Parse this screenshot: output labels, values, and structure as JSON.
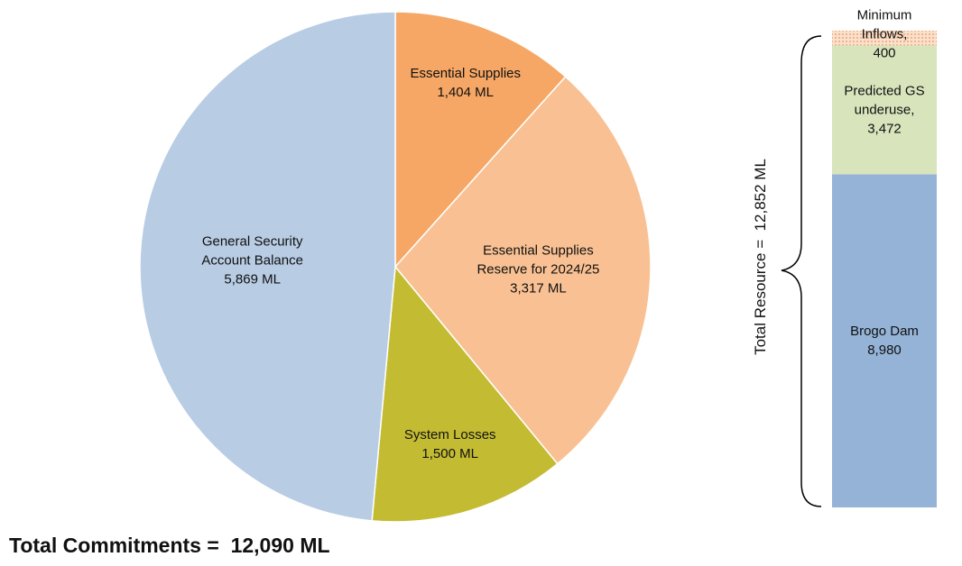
{
  "chart_data": [
    {
      "type": "pie",
      "categories": [
        "Essential Supplies",
        "Essential Supplies Reserve for 2024/25",
        "System Losses",
        "General Security Account Balance"
      ],
      "values": [
        1404,
        3317,
        1500,
        5869
      ],
      "value_labels": [
        "1,404 ML",
        "3,317 ML",
        "1,500 ML",
        "5,869 ML"
      ],
      "colors": [
        "#f6a765",
        "#f9c193",
        "#c3bb32",
        "#b8cce4"
      ],
      "annotation": "Total Commitments =  12,090 ML"
    },
    {
      "type": "stacked-bar",
      "categories": [
        "Brogo Dam",
        "Predicted GS underuse,",
        "Minimum Inflows,"
      ],
      "values": [
        8980,
        3472,
        400
      ],
      "value_labels": [
        "8,980",
        "3,472",
        "400"
      ],
      "colors": [
        "#95b3d7",
        "#d7e4bc",
        "#f8cbad"
      ],
      "annotation": "Total Resource =  12,852 ML"
    }
  ]
}
